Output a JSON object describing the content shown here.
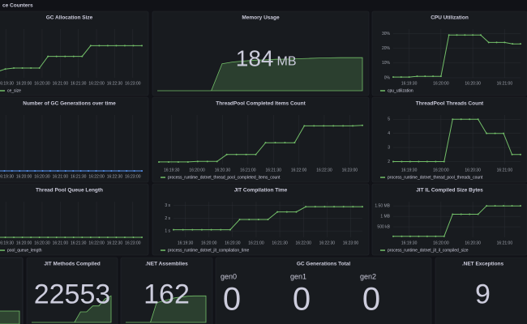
{
  "header": {
    "title": "ce Counters"
  },
  "panels": [
    {
      "title": "GC Allocation Size",
      "type": "line",
      "color": "#73bf69",
      "ylim": [
        0,
        100
      ],
      "xticks": [
        "16:19:30",
        "16:20:00",
        "16:20:30",
        "16:21:00",
        "16:21:30",
        "16:22:00",
        "16:22:30",
        "16:23:00"
      ],
      "legend": "ce_size",
      "values": [
        12,
        18,
        20,
        20,
        20,
        20,
        44,
        44,
        44,
        44,
        44,
        66,
        66,
        66,
        66,
        66,
        66,
        66
      ]
    },
    {
      "title": "Memory Usage",
      "type": "stat",
      "color": "#73bf69",
      "value": 184,
      "unit": "MB",
      "spark": [
        0,
        0,
        0,
        0,
        0,
        0,
        150,
        160,
        165,
        170,
        172,
        175,
        176,
        178,
        180,
        182,
        183,
        184,
        184,
        184
      ]
    },
    {
      "title": "CPU Utilization",
      "type": "line",
      "color": "#73bf69",
      "ylim": [
        0,
        33
      ],
      "yticks": [
        {
          "value": 0,
          "label": "0%"
        },
        {
          "value": 10,
          "label": "10%"
        },
        {
          "value": 20,
          "label": "20%"
        },
        {
          "value": 30,
          "label": "30%"
        }
      ],
      "xticks": [
        "16:19:30",
        "16:20:00",
        "16:20:30",
        "16:21:00"
      ],
      "legend": "cpu_utilization",
      "values": [
        0.5,
        0.5,
        0.5,
        1,
        1,
        1,
        1,
        29,
        29,
        29,
        29,
        29,
        24,
        24,
        24,
        23,
        23
      ]
    },
    {
      "title": "Number of GC Generations over time",
      "type": "line",
      "color": "#5794f2",
      "ylim": [
        0,
        1
      ],
      "xticks": [
        "16:19:30",
        "16:20:00",
        "16:20:30",
        "16:21:00",
        "16:21:30",
        "16:22:00",
        "16:22:30",
        "16:23:00"
      ],
      "values": [
        0,
        0,
        0,
        0,
        0,
        0,
        0,
        0,
        0,
        0,
        0,
        0,
        0,
        0,
        0,
        0,
        0,
        0,
        0,
        0
      ]
    },
    {
      "title": "ThreadPool Completed Items Count",
      "type": "line",
      "color": "#73bf69",
      "ylim": [
        0,
        100
      ],
      "xticks": [
        "16:19:30",
        "16:20:00",
        "16:20:30",
        "16:21:00",
        "16:21:30",
        "16:22:00",
        "16:22:30",
        "16:23:00"
      ],
      "legend": "process_runtime_dotnet_thread_pool_completed_items_count",
      "values": [
        5,
        5,
        5,
        5,
        6,
        6,
        6,
        20,
        20,
        20,
        20,
        44,
        44,
        44,
        44,
        78,
        78,
        78,
        78,
        78,
        78,
        79
      ]
    },
    {
      "title": "ThreadPool Threads Count",
      "type": "line",
      "color": "#73bf69",
      "ylim": [
        1.8,
        5.3
      ],
      "yticks": [
        2,
        3,
        4,
        5
      ],
      "xticks": [
        "16:19:30",
        "16:20:00",
        "16:20:30",
        "16:21:00"
      ],
      "legend": "process_runtime_dotnet_thread_pool_threads_count",
      "values": [
        2,
        2,
        2,
        2,
        2,
        2,
        2,
        5,
        5,
        5,
        5,
        4,
        4,
        4,
        2.5,
        2.5
      ]
    },
    {
      "title": "Thread Pool Queue Length",
      "type": "line",
      "color": "#73bf69",
      "ylim": [
        0,
        1
      ],
      "xticks": [
        "16:19:30",
        "16:20:00",
        "16:20:30",
        "16:21:00",
        "16:21:30",
        "16:22:00",
        "16:22:30",
        "16:23:00"
      ],
      "legend": "pool_queue_length",
      "values": [
        0,
        0,
        0,
        0,
        0,
        0,
        0,
        0,
        0,
        0,
        0,
        0,
        0,
        0,
        0,
        0,
        0,
        0
      ]
    },
    {
      "title": "JIT Compilation Time",
      "type": "line",
      "color": "#73bf69",
      "ylim": [
        0.5,
        3.3
      ],
      "yticks": [
        {
          "value": 1,
          "label": "1 s"
        },
        {
          "value": 2,
          "label": "2 s"
        },
        {
          "value": 3,
          "label": "3 s"
        }
      ],
      "xticks": [
        "16:19:30",
        "16:20:00",
        "16:20:30",
        "16:21:00",
        "16:21:30",
        "16:22:00",
        "16:22:30",
        "16:23:00"
      ],
      "legend": "process_runtime_dotnet_jit_compilation_time",
      "values": [
        1.1,
        1.1,
        1.1,
        1.1,
        1.1,
        1.1,
        1.1,
        1.9,
        1.9,
        1.9,
        1.9,
        2.5,
        2.5,
        2.5,
        2.9,
        2.9,
        2.9,
        2.9,
        2.9,
        2.9,
        2.9
      ]
    },
    {
      "title": "JIT IL Compiled Size Bytes",
      "type": "line",
      "color": "#73bf69",
      "ylim": [
        0,
        1700000
      ],
      "yticks": [
        {
          "value": 500000,
          "label": "500 kB"
        },
        {
          "value": 1000000,
          "label": "1 MB"
        },
        {
          "value": 1500000,
          "label": "1.50 MB"
        }
      ],
      "xticks": [
        "16:19:30",
        "16:20:00",
        "16:20:30",
        "16:21:00"
      ],
      "legend": "process_runtime_dotnet_jit_il_compiled_size",
      "values": [
        50000,
        50000,
        50000,
        50000,
        50000,
        50000,
        50000,
        1100000,
        1100000,
        1100000,
        1100000,
        1500000,
        1500000,
        1500000,
        1500000,
        1500000
      ]
    },
    {
      "title": "JIT Methods Compiled",
      "type": "stat",
      "color": "#73bf69",
      "value": 22553,
      "spark": [
        0,
        0,
        0,
        0,
        0,
        0,
        0,
        0,
        9000,
        9000,
        14000,
        14000,
        20000,
        22553
      ]
    },
    {
      "title": ".NET Assemblies",
      "type": "stat",
      "color": "#73bf69",
      "value": 162,
      "spark": [
        0,
        0,
        0,
        0,
        0,
        120,
        130,
        140,
        150,
        155,
        160,
        162,
        162,
        162
      ]
    },
    {
      "title": "GC Generations Total",
      "type": "multistat",
      "color": "#73bf69",
      "items": [
        {
          "label": "gen0",
          "value": 0
        },
        {
          "label": "gen1",
          "value": 0
        },
        {
          "label": "gen2",
          "value": 0
        }
      ]
    },
    {
      "title": ".NET Exceptions",
      "type": "stat",
      "color": "#f2495c",
      "value": 9
    }
  ]
}
